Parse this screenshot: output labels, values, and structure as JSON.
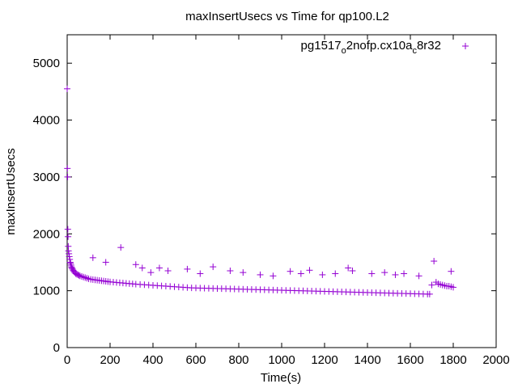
{
  "chart_data": {
    "type": "scatter",
    "title": "maxInsertUsecs vs Time for qp100.L2",
    "xlabel": "Time(s)",
    "ylabel": "maxInsertUsecs",
    "xlim": [
      0,
      2000
    ],
    "ylim": [
      0,
      5500
    ],
    "x_ticks": [
      "0",
      "200",
      "400",
      "600",
      "800",
      "1000",
      "1200",
      "1400",
      "1600",
      "1800",
      "2000"
    ],
    "y_ticks": [
      "0",
      "1000",
      "2000",
      "3000",
      "4000",
      "5000"
    ],
    "grid": false,
    "legend_position": "top-right",
    "marker": "plus",
    "color": "#9400d3",
    "legend": {
      "parts": [
        "pg1517",
        "o",
        "2nofp.cx10a",
        "c",
        "8r32"
      ],
      "subscript_parts": [
        1,
        3
      ]
    },
    "series": [
      {
        "name": "pg1517o2nofp.cx10ac8r32",
        "x": [
          0,
          1,
          2,
          3,
          4,
          5,
          6,
          8,
          10,
          12,
          14,
          16,
          18,
          20,
          22,
          25,
          28,
          31,
          35,
          40,
          45,
          50,
          55,
          60,
          68,
          76,
          84,
          92,
          100,
          110,
          120,
          130,
          140,
          150,
          160,
          170,
          180,
          190,
          200,
          215,
          230,
          245,
          250,
          260,
          275,
          290,
          305,
          320,
          340,
          350,
          360,
          380,
          400,
          420,
          440,
          460,
          480,
          500,
          520,
          540,
          560,
          580,
          600,
          620,
          640,
          660,
          680,
          700,
          720,
          740,
          760,
          780,
          800,
          820,
          840,
          860,
          880,
          900,
          920,
          940,
          960,
          980,
          1000,
          1020,
          1040,
          1060,
          1080,
          1100,
          1120,
          1140,
          1160,
          1180,
          1200,
          1220,
          1240,
          1260,
          1280,
          1300,
          1320,
          1340,
          1360,
          1380,
          1400,
          1420,
          1440,
          1460,
          1480,
          1500,
          1520,
          1540,
          1560,
          1580,
          1600,
          1620,
          1640,
          1660,
          1680,
          1690,
          1700,
          1710,
          1720,
          1730,
          1740,
          1750,
          1760,
          1770,
          1780,
          1790,
          1800
        ],
        "y": [
          4550,
          3150,
          3000,
          2080,
          1950,
          1780,
          1700,
          1650,
          1600,
          1550,
          1500,
          1480,
          1450,
          1420,
          1400,
          1380,
          1360,
          1340,
          1320,
          1300,
          1290,
          1280,
          1270,
          1260,
          1250,
          1240,
          1230,
          1220,
          1210,
          1200,
          1195,
          1190,
          1185,
          1180,
          1175,
          1170,
          1165,
          1160,
          1155,
          1150,
          1145,
          1140,
          1760,
          1135,
          1130,
          1125,
          1120,
          1115,
          1110,
          1400,
          1105,
          1100,
          1095,
          1090,
          1085,
          1080,
          1075,
          1070,
          1065,
          1060,
          1055,
          1050,
          1048,
          1046,
          1044,
          1042,
          1040,
          1038,
          1036,
          1034,
          1032,
          1030,
          1028,
          1026,
          1024,
          1022,
          1020,
          1018,
          1016,
          1014,
          1012,
          1010,
          1008,
          1006,
          1004,
          1002,
          1000,
          998,
          996,
          994,
          992,
          990,
          988,
          986,
          984,
          982,
          980,
          978,
          976,
          974,
          972,
          970,
          968,
          966,
          964,
          962,
          960,
          958,
          956,
          954,
          952,
          950,
          948,
          946,
          944,
          942,
          940,
          940,
          1100,
          1520,
          1150,
          1120,
          1110,
          1100,
          1090,
          1080,
          1080,
          1070,
          1060
        ],
        "outliers_x": [
          120,
          180,
          320,
          390,
          430,
          470,
          560,
          620,
          680,
          760,
          820,
          900,
          960,
          1040,
          1090,
          1130,
          1190,
          1250,
          1310,
          1330,
          1420,
          1480,
          1530,
          1570,
          1640,
          1790
        ],
        "outliers_y": [
          1580,
          1500,
          1460,
          1320,
          1400,
          1350,
          1380,
          1300,
          1420,
          1350,
          1320,
          1280,
          1260,
          1340,
          1300,
          1360,
          1280,
          1300,
          1400,
          1350,
          1300,
          1320,
          1280,
          1300,
          1260,
          1340
        ]
      }
    ]
  }
}
